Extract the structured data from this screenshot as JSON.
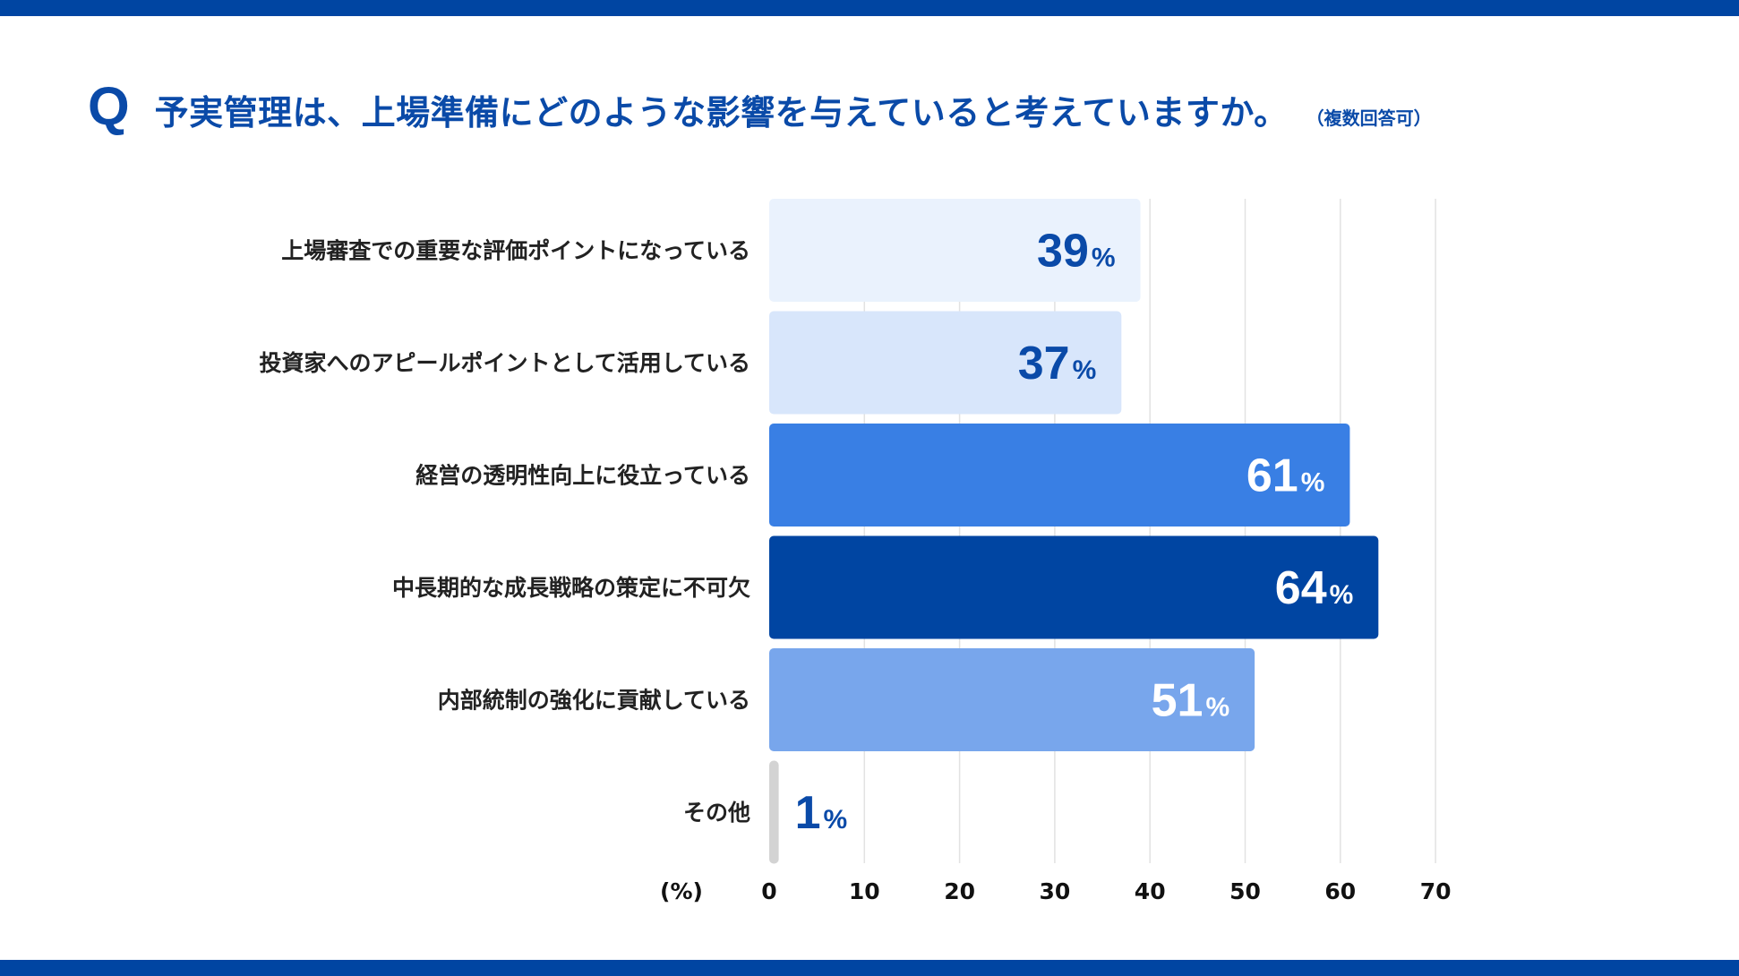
{
  "question": {
    "mark": "Q",
    "text": "予実管理は、上場準備にどのような影響を与えていると考えていますか。",
    "note": "（複数回答可）"
  },
  "chart_data": {
    "type": "bar",
    "orientation": "horizontal",
    "title": "予実管理は、上場準備にどのような影響を与えていると考えていますか。",
    "subtitle": "（複数回答可）",
    "categories": [
      "上場審査での重要な評価ポイントになっている",
      "投資家へのアピールポイントとして活用している",
      "経営の透明性向上に役立っている",
      "中長期的な成長戦略の策定に不可欠",
      "内部統制の強化に貢献している",
      "その他"
    ],
    "values": [
      39,
      37,
      61,
      64,
      51,
      1
    ],
    "value_suffix": "%",
    "bar_colors": [
      "#eaf2fd",
      "#d8e6fb",
      "#397fe4",
      "#0045a2",
      "#78a6ec",
      "#d3d3d3"
    ],
    "label_colors": [
      "#0a4aa8",
      "#0a4aa8",
      "#ffffff",
      "#ffffff",
      "#ffffff",
      "#0a4aa8"
    ],
    "xlabel": "(%)",
    "xlim": [
      0,
      70
    ],
    "xticks": [
      0,
      10,
      20,
      30,
      40,
      50,
      60,
      70
    ],
    "grid": true,
    "legend": "none"
  }
}
